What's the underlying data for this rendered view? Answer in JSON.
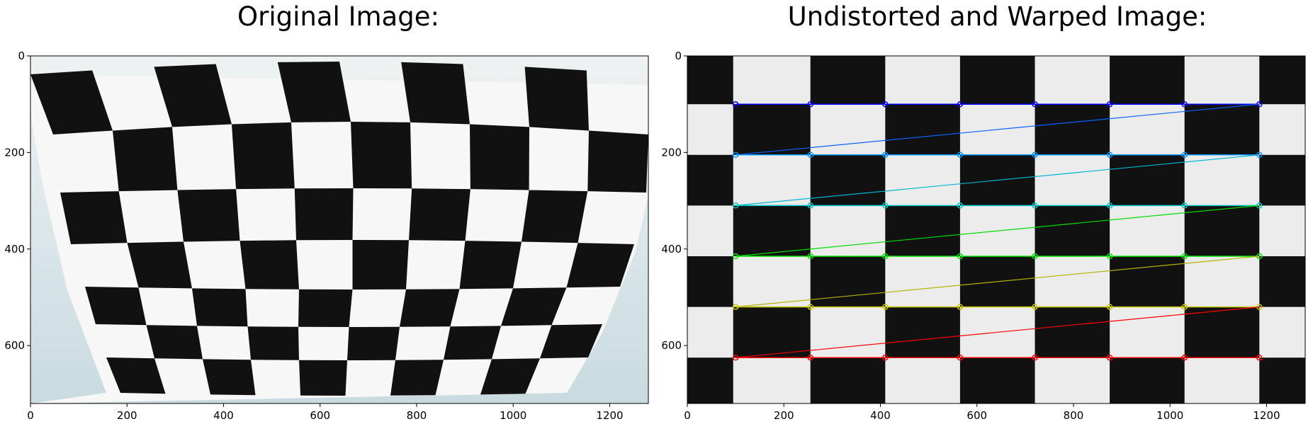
{
  "figure": {
    "panels": [
      {
        "title": "Original Image:",
        "x_ticks": [
          "0",
          "200",
          "400",
          "600",
          "800",
          "1000",
          "1200"
        ],
        "y_ticks": [
          "0",
          "200",
          "400",
          "600"
        ],
        "x_range": [
          0,
          1280
        ],
        "y_range": [
          720,
          0
        ]
      },
      {
        "title": "Undistorted and Warped Image:",
        "x_ticks": [
          "0",
          "200",
          "400",
          "600",
          "800",
          "1000",
          "1200"
        ],
        "y_ticks": [
          "0",
          "200",
          "400",
          "600"
        ],
        "x_range": [
          0,
          1280
        ],
        "y_range": [
          720,
          0
        ]
      }
    ],
    "corner_row_colors": [
      "#0000ff",
      "#0096ff",
      "#00c8c8",
      "#00e600",
      "#c8c800",
      "#ff0000"
    ],
    "line_color_cycle": [
      "#0a64ff",
      "#00b4d2",
      "#00dc00",
      "#b4b400",
      "#ff0000"
    ]
  }
}
